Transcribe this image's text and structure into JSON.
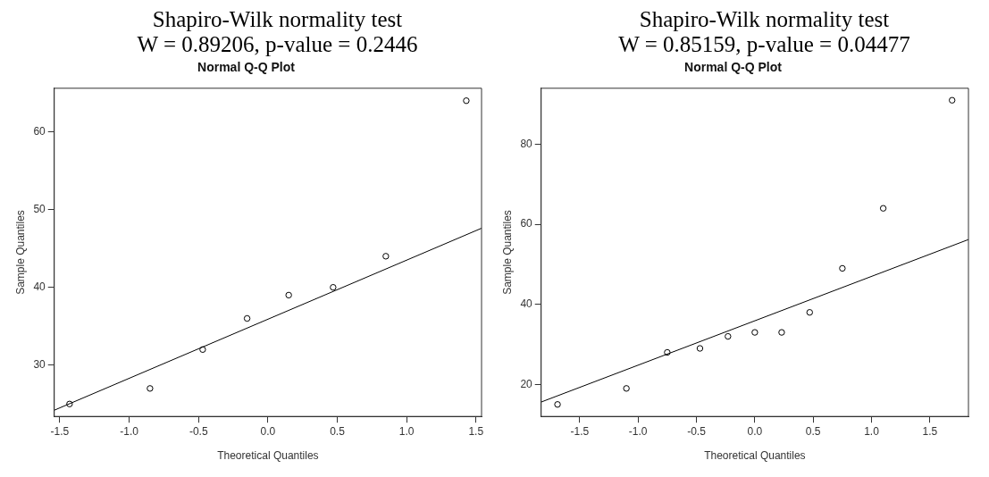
{
  "chart_data": [
    {
      "type": "scatter",
      "title": "Normal Q-Q Plot",
      "annotations": [
        "Shapiro-Wilk normality test",
        "W = 0.89206, p-value = 0.2446"
      ],
      "xlabel": "Theoretical Quantiles",
      "ylabel": "Sample Quantiles",
      "xlim": [
        -1.54,
        1.54
      ],
      "ylim": [
        23.4,
        65.6
      ],
      "xticks": [
        -1.5,
        {
          "value": -1,
          "label": "-1.0"
        },
        -0.5,
        {
          "value": 0,
          "label": "0.0"
        },
        0.5,
        {
          "value": 1,
          "label": "1.0"
        },
        1.5
      ],
      "yticks": [
        30,
        40,
        50,
        60
      ],
      "legend": false,
      "marker": "circle",
      "series": [
        {
          "color": "#000000",
          "x": [
            -1.43,
            -0.85,
            -0.47,
            -0.15,
            0.15,
            0.47,
            0.85,
            1.43
          ],
          "values": [
            25,
            27,
            32,
            36,
            39,
            40,
            44,
            64
          ]
        },
        {
          "type": "line",
          "color": "#000000",
          "marker": "none",
          "line_style": "solid",
          "x": [
            -1.54,
            1.54
          ],
          "values": [
            24.2,
            47.6
          ]
        }
      ]
    },
    {
      "type": "scatter",
      "title": "Normal Q-Q Plot",
      "annotations": [
        "Shapiro-Wilk normality test",
        "W = 0.85159, p-value = 0.04477"
      ],
      "xlabel": "Theoretical Quantiles",
      "ylabel": "Sample Quantiles",
      "xlim": [
        -1.83,
        1.83
      ],
      "ylim": [
        12,
        94
      ],
      "xticks": [
        -1.5,
        {
          "value": -1,
          "label": "-1.0"
        },
        -0.5,
        {
          "value": 0,
          "label": "0.0"
        },
        0.5,
        {
          "value": 1,
          "label": "1.0"
        },
        1.5
      ],
      "yticks": [
        20,
        40,
        60,
        80
      ],
      "legend": false,
      "marker": "circle",
      "series": [
        {
          "color": "#000000",
          "x": [
            -1.69,
            -1.1,
            -0.75,
            -0.47,
            -0.23,
            0,
            0.23,
            0.47,
            0.75,
            1.1,
            1.69
          ],
          "values": [
            15,
            19,
            28,
            29,
            32,
            33,
            33,
            38,
            49,
            64,
            91
          ]
        },
        {
          "type": "line",
          "color": "#000000",
          "marker": "none",
          "line_style": "solid",
          "x": [
            -1.83,
            1.83
          ],
          "values": [
            15.6,
            56.2
          ]
        }
      ]
    }
  ]
}
